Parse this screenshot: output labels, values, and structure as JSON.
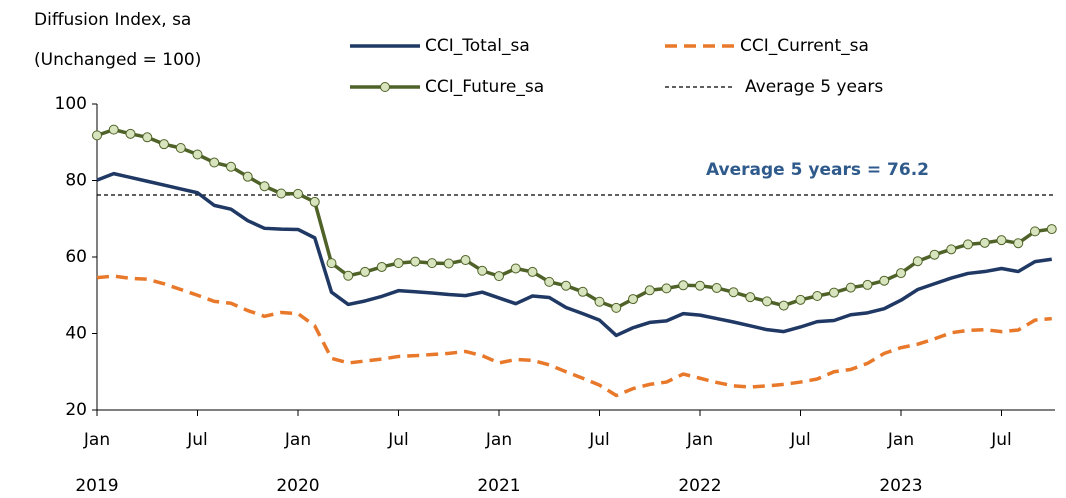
{
  "chart_data": {
    "type": "line",
    "y_label": [
      "Diffusion Index, sa",
      "(Unchanged = 100)"
    ],
    "categories": [
      "Jan",
      null,
      null,
      null,
      null,
      null,
      "Jul",
      null,
      null,
      null,
      null,
      null,
      "Jan",
      null,
      null,
      null,
      null,
      null,
      "Jul",
      null,
      null,
      null,
      null,
      null,
      "Jan",
      null,
      null,
      null,
      null,
      null,
      "Jul",
      null,
      null,
      null,
      null,
      null,
      "Jan",
      null,
      null,
      null,
      null,
      null,
      "Jul",
      null,
      null,
      null,
      null,
      null,
      "Jan",
      null,
      null,
      null,
      null,
      null,
      "Jul",
      null,
      null,
      null
    ],
    "years": [
      "2019",
      null,
      null,
      null,
      null,
      null,
      null,
      null,
      null,
      null,
      null,
      null,
      "2020",
      null,
      null,
      null,
      null,
      null,
      null,
      null,
      null,
      null,
      null,
      null,
      "2021",
      null,
      null,
      null,
      null,
      null,
      null,
      null,
      null,
      null,
      null,
      null,
      "2022",
      null,
      null,
      null,
      null,
      null,
      null,
      null,
      null,
      null,
      null,
      null,
      "2023",
      null,
      null,
      null,
      null,
      null,
      null,
      null,
      null,
      null
    ],
    "series": [
      {
        "name": "CCI_Total_sa",
        "color": "#1f3864",
        "dash": "solid",
        "marker": "none",
        "values": [
          80.1,
          81.8,
          80.8,
          79.8,
          78.8,
          77.8,
          76.8,
          73.5,
          72.5,
          69.5,
          67.5,
          67.3,
          67.2,
          65.0,
          50.8,
          47.6,
          48.5,
          49.7,
          51.2,
          50.9,
          50.6,
          50.2,
          49.9,
          50.8,
          49.3,
          47.8,
          49.8,
          49.4,
          46.8,
          45.2,
          43.5,
          39.5,
          41.5,
          42.9,
          43.3,
          45.2,
          44.8,
          43.9,
          43.0,
          42.0,
          41.0,
          40.5,
          41.7,
          43.1,
          43.4,
          44.9,
          45.4,
          46.5,
          48.7,
          51.5,
          53.0,
          54.5,
          55.7,
          56.2,
          57.0,
          56.2,
          58.8,
          59.4
        ]
      },
      {
        "name": "CCI_Current_sa",
        "color": "#e8782a",
        "dash": "dashed",
        "marker": "none",
        "values": [
          54.6,
          55.0,
          54.4,
          54.2,
          53.0,
          51.5,
          50.0,
          48.4,
          47.9,
          46.0,
          44.5,
          45.5,
          45.2,
          42.0,
          33.5,
          32.3,
          32.8,
          33.3,
          34.0,
          34.2,
          34.5,
          34.8,
          35.3,
          34.2,
          32.3,
          33.2,
          33.0,
          31.8,
          30.0,
          28.3,
          26.5,
          23.8,
          25.6,
          26.7,
          27.3,
          29.4,
          28.3,
          27.2,
          26.3,
          26.0,
          26.3,
          26.7,
          27.3,
          28.1,
          30.0,
          30.6,
          32.2,
          34.8,
          36.3,
          37.2,
          38.6,
          40.2,
          40.8,
          41.0,
          40.5,
          40.9,
          43.5,
          43.9
        ]
      },
      {
        "name": "CCI_Future_sa",
        "color": "#4f6228",
        "dash": "solid",
        "marker": "circle",
        "marker_fill": "#d7e4bd",
        "values": [
          91.8,
          93.3,
          92.2,
          91.3,
          89.5,
          88.5,
          86.8,
          84.7,
          83.6,
          81.0,
          78.5,
          76.6,
          76.5,
          74.4,
          58.4,
          55.1,
          56.1,
          57.4,
          58.4,
          58.8,
          58.4,
          58.3,
          59.2,
          56.4,
          55.0,
          57.0,
          56.1,
          53.5,
          52.5,
          50.9,
          48.3,
          46.7,
          49.0,
          51.3,
          51.8,
          52.6,
          52.5,
          51.9,
          50.8,
          49.5,
          48.4,
          47.3,
          48.8,
          49.8,
          50.7,
          52.0,
          52.7,
          53.8,
          55.8,
          58.9,
          60.6,
          62.0,
          63.3,
          63.7,
          64.4,
          63.6,
          66.7,
          67.3
        ]
      }
    ],
    "reference_line": {
      "name": "Average 5 years",
      "value": 76.2,
      "color": "#000000",
      "label": "Average 5 years = 76.2"
    },
    "ylim": [
      20,
      100
    ],
    "yticks": [
      20,
      40,
      60,
      80,
      100
    ],
    "grid": false
  }
}
